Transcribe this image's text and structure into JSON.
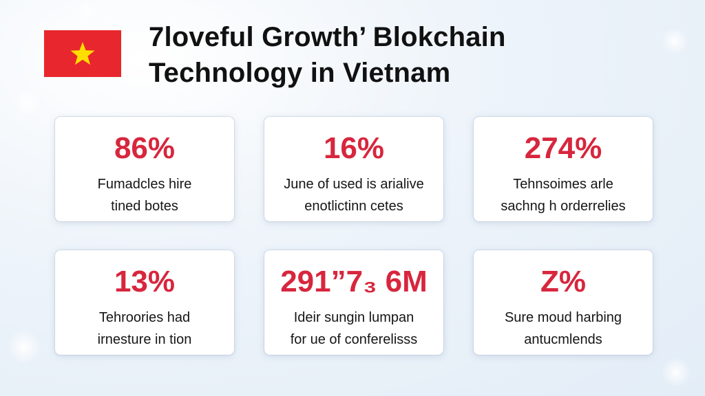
{
  "header": {
    "title_line1": "7loveful Growth’ Blokchain",
    "title_line2": "Technology in Vietnam"
  },
  "flag": {
    "icon": "vietnam-flag-icon",
    "background_color": "#e8262d",
    "star_color": "#ffde00"
  },
  "accent_color": "#d7263d",
  "stats": [
    {
      "value": "86%",
      "desc_line1": "Fumadcles hire",
      "desc_line2": "tined botes"
    },
    {
      "value": "16%",
      "desc_line1": "June of used is arialive",
      "desc_line2": "enotlictinn cetes"
    },
    {
      "value": "274%",
      "desc_line1": "Tehnsoimes arle",
      "desc_line2": "sachng h orderrelies"
    },
    {
      "value": "13%",
      "desc_line1": "Tehroories had",
      "desc_line2": "irnesture in tion"
    },
    {
      "value": "291”7₃ 6M",
      "desc_line1": "Ideir sungin lumpan",
      "desc_line2": "for ue of conferelisss"
    },
    {
      "value": "Z%",
      "desc_line1": "Sure moud harbing",
      "desc_line2": "antucmlends"
    }
  ]
}
